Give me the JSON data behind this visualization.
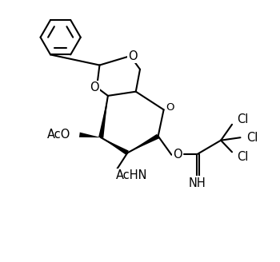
{
  "bg": "#ffffff",
  "lc": "#000000",
  "lw": 1.5,
  "fs": 10.5,
  "figsize": [
    3.5,
    3.28
  ],
  "dpi": 100,
  "xlim": [
    0,
    10
  ],
  "ylim": [
    0,
    9.37
  ]
}
